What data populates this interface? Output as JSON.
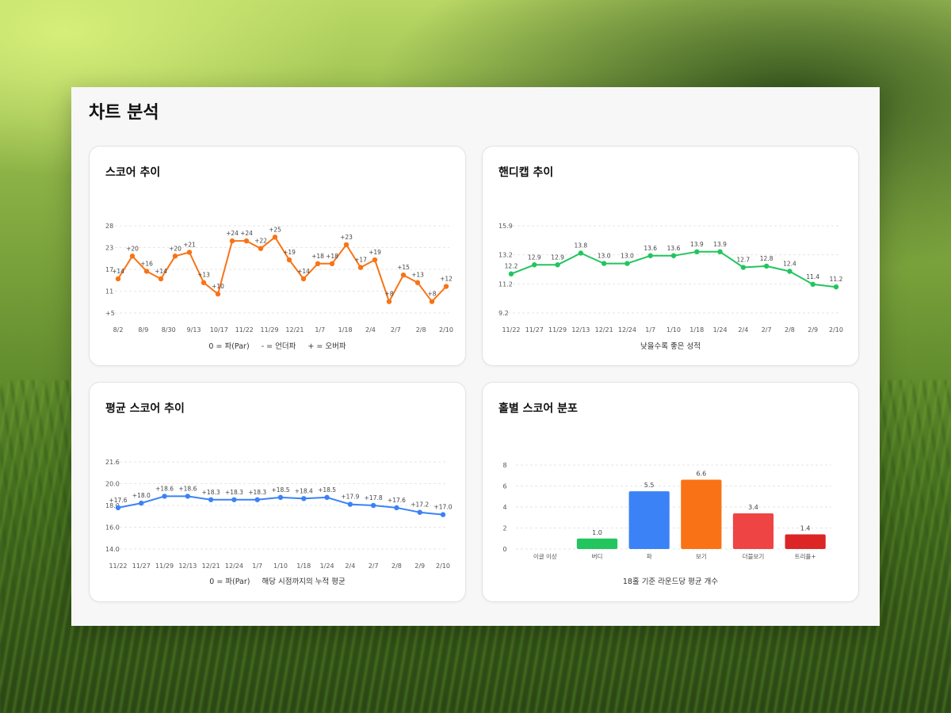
{
  "page": {
    "title": "차트 분석"
  },
  "cards": {
    "score": {
      "title": "스코어 추이",
      "legend": [
        "0 = 파(Par)",
        "- = 언더파",
        "+ = 오버파"
      ]
    },
    "handicap": {
      "title": "핸디캡 추이",
      "caption": "낮을수록 좋은 성적"
    },
    "average": {
      "title": "평균 스코어 추이",
      "legend": [
        "0 = 파(Par)",
        "해당 시점까지의 누적 평균"
      ]
    },
    "holes": {
      "title": "홀별 스코어 분포",
      "caption": "18홀 기준 라운드당 평균 개수"
    }
  },
  "colors": {
    "score": "#f97316",
    "handicap": "#22c55e",
    "average": "#3b82f6",
    "bars": [
      "#22c55e",
      "#22c55e",
      "#3b82f6",
      "#f97316",
      "#ef4444",
      "#dc2626"
    ]
  },
  "chart_data": [
    {
      "id": "score",
      "type": "line",
      "title": "스코어 추이",
      "y_ticks": [
        "+5",
        "11",
        "17",
        "23",
        "28"
      ],
      "ylim": [
        5,
        28
      ],
      "x_ticks": [
        "8/2",
        "8/9",
        "8/30",
        "9/13",
        "10/17",
        "11/22",
        "11/29",
        "12/21",
        "1/7",
        "1/18",
        "2/4",
        "2/7",
        "2/8",
        "2/10"
      ],
      "values": [
        14,
        20,
        16,
        14,
        20,
        21,
        13,
        10,
        24,
        24,
        22,
        25,
        19,
        14,
        18,
        18,
        23,
        17,
        19,
        8,
        15,
        13,
        8,
        12
      ],
      "labels": [
        "+14",
        "+20",
        "+16",
        "+14",
        "+20",
        "+21",
        "+13",
        "+10",
        "+24",
        "+24",
        "+22",
        "+25",
        "+19",
        "+14",
        "+18",
        "+18",
        "+23",
        "+17",
        "+19",
        "+8",
        "+15",
        "+13",
        "+8",
        "+12"
      ],
      "grid": true
    },
    {
      "id": "handicap",
      "type": "line",
      "title": "핸디캡 추이",
      "y_ticks": [
        "9.2",
        "11.2",
        "13.2",
        "15.9"
      ],
      "ylim": [
        9.2,
        15.9
      ],
      "x_ticks": [
        "11/22",
        "11/27",
        "11/29",
        "12/13",
        "12/21",
        "12/24",
        "1/7",
        "1/10",
        "1/18",
        "1/24",
        "2/4",
        "2/7",
        "2/8",
        "2/9",
        "2/10"
      ],
      "values": [
        12.2,
        12.9,
        12.9,
        13.8,
        13.0,
        13.0,
        13.6,
        13.6,
        13.9,
        13.9,
        12.7,
        12.8,
        12.4,
        11.4,
        11.2
      ],
      "labels": [
        "12.2",
        "12.9",
        "12.9",
        "13.8",
        "13.0",
        "13.0",
        "13.6",
        "13.6",
        "13.9",
        "13.9",
        "12.7",
        "12.8",
        "12.4",
        "11.4",
        "11.2"
      ],
      "grid": true
    },
    {
      "id": "average",
      "type": "line",
      "title": "평균 스코어 추이",
      "y_ticks": [
        "14.0",
        "16.0",
        "18.0",
        "20.0",
        "21.6"
      ],
      "ylim": [
        14.0,
        21.6
      ],
      "x_ticks": [
        "11/22",
        "11/27",
        "11/29",
        "12/13",
        "12/21",
        "12/24",
        "1/7",
        "1/10",
        "1/18",
        "1/24",
        "2/4",
        "2/7",
        "2/8",
        "2/9",
        "2/10"
      ],
      "values": [
        17.6,
        18.0,
        18.6,
        18.6,
        18.3,
        18.3,
        18.3,
        18.5,
        18.4,
        18.5,
        17.9,
        17.8,
        17.6,
        17.2,
        17.0
      ],
      "labels": [
        "+17.6",
        "+18.0",
        "+18.6",
        "+18.6",
        "+18.3",
        "+18.3",
        "+18.3",
        "+18.5",
        "+18.4",
        "+18.5",
        "+17.9",
        "+17.8",
        "+17.6",
        "+17.2",
        "+17.0"
      ],
      "grid": true
    },
    {
      "id": "holes",
      "type": "bar",
      "title": "홀별 스코어 분포",
      "categories": [
        "이글 이상",
        "버디",
        "파",
        "보기",
        "더블보기",
        "트리플+"
      ],
      "values": [
        0,
        1.0,
        5.5,
        6.6,
        3.4,
        1.4
      ],
      "labels": [
        "",
        "1.0",
        "5.5",
        "6.6",
        "3.4",
        "1.4"
      ],
      "y_ticks": [
        "0",
        "2",
        "4",
        "6",
        "8"
      ],
      "ylim": [
        0,
        8
      ],
      "grid": true
    }
  ]
}
